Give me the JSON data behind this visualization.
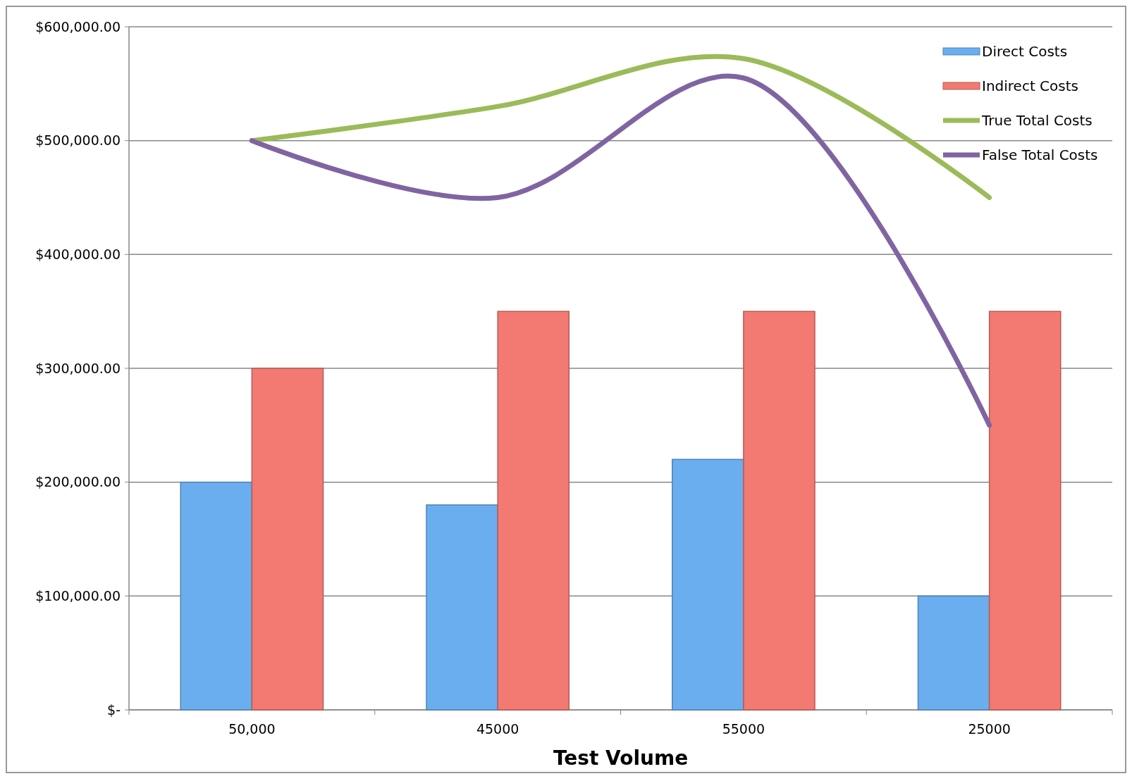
{
  "chart_data": {
    "type": "bar",
    "xlabel": "Test Volume",
    "categories": [
      "50,000",
      "45000",
      "55000",
      "25000"
    ],
    "series": [
      {
        "name": "Direct Costs",
        "color": "#6aaef0",
        "values": [
          200000,
          180000,
          220000,
          100000
        ]
      },
      {
        "name": "Indirect Costs",
        "color": "#f27a72",
        "values": [
          300000,
          350000,
          350000,
          350000
        ]
      },
      {
        "name": "True Total Costs",
        "type": "line",
        "color": "#9bbb59",
        "values": [
          500000,
          530000,
          572000,
          450000
        ]
      },
      {
        "name": "False Total Costs",
        "type": "line",
        "color": "#8064a2",
        "values": [
          500000,
          450000,
          555000,
          250000
        ]
      }
    ],
    "ylim": [
      0,
      600000
    ],
    "yticks": [
      {
        "value": 0,
        "label": "$-"
      },
      {
        "value": 100000,
        "label": "$100,000.00"
      },
      {
        "value": 200000,
        "label": "$200,000.00"
      },
      {
        "value": 300000,
        "label": "$300,000.00"
      },
      {
        "value": 400000,
        "label": "$400,000.00"
      },
      {
        "value": 500000,
        "label": "$500,000.00"
      },
      {
        "value": 600000,
        "label": "$600,000.00"
      }
    ],
    "grid": "y",
    "legend": "top right",
    "marker": "none",
    "line_style": "solid"
  }
}
